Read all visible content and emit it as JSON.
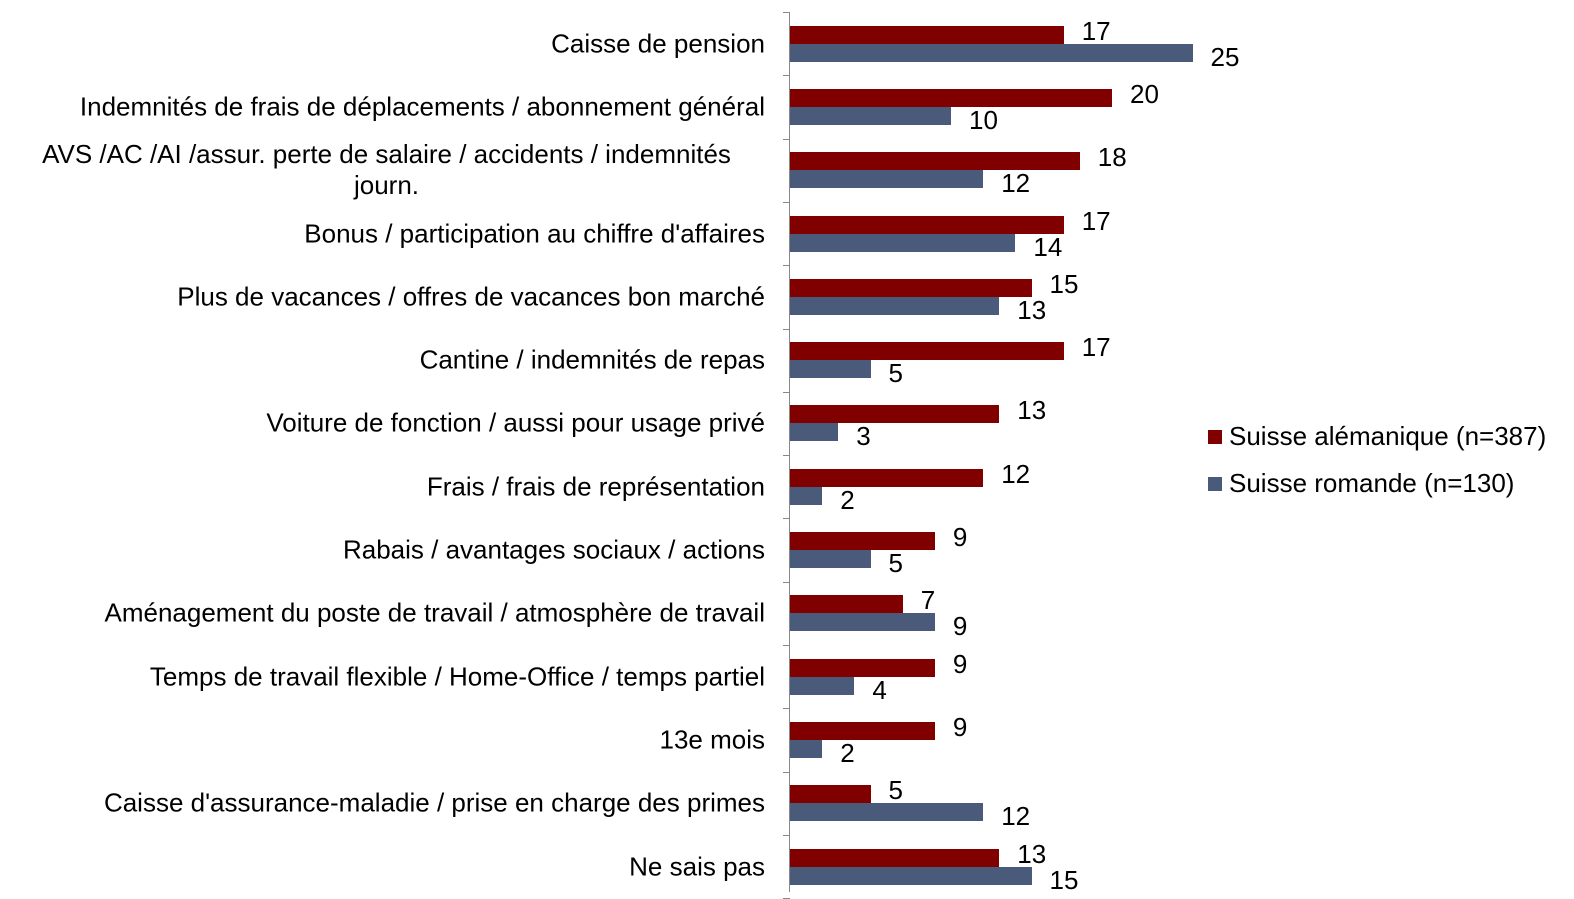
{
  "chart_data": {
    "type": "bar",
    "orientation": "horizontal",
    "categories": [
      "Caisse de pension",
      "Indemnités de frais de déplacements / abonnement général",
      "AVS /AC /AI /assur. perte de salaire / accidents / indemnités journ.",
      "Bonus / participation au chiffre d'affaires",
      "Plus de vacances / offres de vacances bon marché",
      "Cantine / indemnités de repas",
      "Voiture de fonction / aussi pour usage privé",
      "Frais / frais de représentation",
      "Rabais / avantages sociaux / actions",
      "Aménagement du poste de travail / atmosphère de travail",
      "Temps de travail flexible / Home-Office / temps partiel",
      "13e mois",
      "Caisse d'assurance-maladie / prise en charge des primes",
      "Ne sais pas"
    ],
    "series": [
      {
        "name": "Suisse alémanique (n=387)",
        "color": "#800000",
        "values": [
          17,
          20,
          18,
          17,
          15,
          17,
          13,
          12,
          9,
          7,
          9,
          9,
          5,
          13
        ]
      },
      {
        "name": "Suisse romande (n=130)",
        "color": "#4a5a7a",
        "values": [
          25,
          10,
          12,
          14,
          13,
          5,
          3,
          2,
          5,
          9,
          4,
          2,
          12,
          15
        ]
      }
    ],
    "legend": "right"
  }
}
